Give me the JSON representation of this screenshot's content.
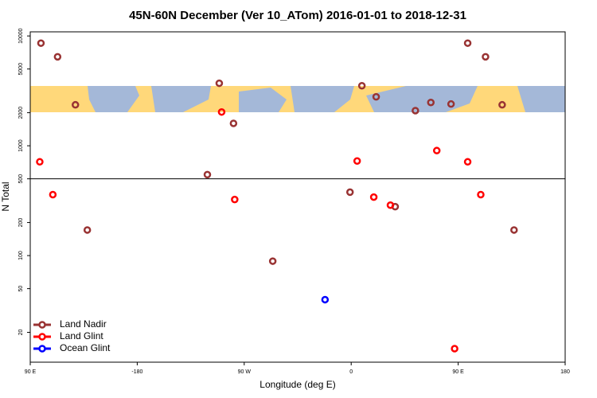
{
  "chart_data": {
    "type": "scatter",
    "title": "45N-60N December (Ver 10_ATom)   2016-01-01 to 2018-12-31",
    "x_label": "Longitude (deg E)",
    "y_label": "N Total",
    "xlim": [
      -270,
      180
    ],
    "xticks": [
      {
        "value": -270,
        "label": "90 E"
      },
      -180,
      {
        "value": -90,
        "label": "90 W"
      },
      0,
      {
        "value": 90,
        "label": "90 E"
      },
      180
    ],
    "ylim": [
      10.7,
      10900
    ],
    "log_y": true,
    "yticks": [
      20,
      50,
      100,
      200,
      500,
      1000,
      2000,
      5000,
      10000
    ],
    "reference_line": 500,
    "legend": "lower left",
    "series": [
      {
        "name": "Land Nadir",
        "color": "#993333",
        "x": [
          -261,
          -247,
          -232,
          -222,
          -121,
          -111,
          -99,
          -66,
          -1,
          9,
          21,
          37,
          54,
          67,
          84,
          98,
          113,
          127,
          137
        ],
        "values": [
          8600,
          6460,
          2360,
          171,
          546,
          3710,
          1600,
          89,
          378,
          3520,
          2790,
          279,
          2090,
          2480,
          2400,
          8600,
          6460,
          2360,
          171
        ]
      },
      {
        "name": "Land Glint",
        "color": "#ff0000",
        "x": [
          -262,
          -251,
          -109,
          -98,
          5,
          19,
          33,
          72,
          87,
          98,
          109
        ],
        "values": [
          714,
          359,
          2030,
          324,
          727,
          341,
          288,
          904,
          14.2,
          714,
          359
        ]
      },
      {
        "name": "Ocean Glint",
        "color": "#0000ff",
        "x": [
          -22
        ],
        "values": [
          39.7
        ]
      }
    ]
  }
}
